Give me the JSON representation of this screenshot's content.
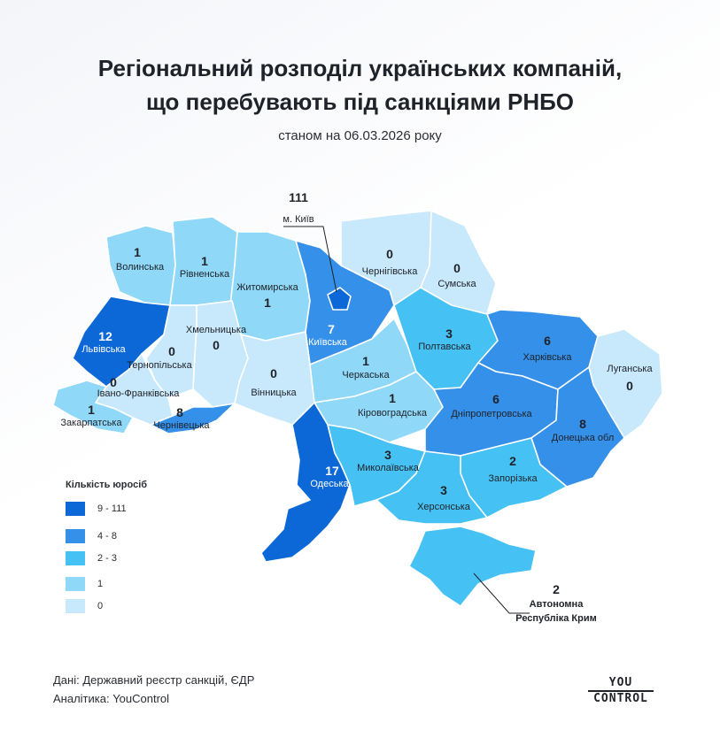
{
  "title_line1": "Регіональний розподіл українських компаній,",
  "title_line2": "що перебувають під санкціями РНБО",
  "subtitle": "станом на 06.03.2026 року",
  "colors": {
    "c0": "#c8e8fb",
    "c1": "#8fd8f8",
    "c2": "#45c1f4",
    "c3": "#3590e9",
    "c4": "#0b68d6"
  },
  "legend": {
    "title": "Кількість юросіб",
    "items": [
      {
        "label": "9 - 111",
        "color": "#0b68d6"
      },
      {
        "label": "4 - 8",
        "color": "#3590e9"
      },
      {
        "label": "2 - 3",
        "color": "#45c1f4"
      },
      {
        "label": "1",
        "color": "#8fd8f8"
      },
      {
        "label": "0",
        "color": "#c8e8fb"
      }
    ]
  },
  "regions": {
    "volynska": {
      "name": "Волинська",
      "value": "1"
    },
    "rivnenska": {
      "name": "Рівненська",
      "value": "1"
    },
    "zhytomyrska": {
      "name": "Житомирська",
      "value": "1"
    },
    "kyivska": {
      "name": "Київська",
      "value": "7"
    },
    "kyiv_city": {
      "name": "м. Київ",
      "value": "111"
    },
    "chernihivska": {
      "name": "Чернігівська",
      "value": "0"
    },
    "sumska": {
      "name": "Сумська",
      "value": "0"
    },
    "lvivska": {
      "name": "Львівська",
      "value": "12"
    },
    "khmelnytska": {
      "name": "Хмельницька",
      "value": "0"
    },
    "ternopilska": {
      "name": "Тернопільська",
      "value": "0"
    },
    "vinnytska": {
      "name": "Вінницька",
      "value": "0"
    },
    "cherkaska": {
      "name": "Черкаська",
      "value": "1"
    },
    "poltavska": {
      "name": "Полтавська",
      "value": "3"
    },
    "kharkivska": {
      "name": "Харківська",
      "value": "6"
    },
    "luhanska": {
      "name": "Луганська",
      "value": "0"
    },
    "ivanofrankivska": {
      "name": "Івано-Франківська",
      "value": "0"
    },
    "zakarpatska": {
      "name": "Закарпатська",
      "value": "1"
    },
    "chernivetska": {
      "name": "Чернівецька",
      "value": "8"
    },
    "kirovohradska": {
      "name": "Кіровоградська",
      "value": "1"
    },
    "dnipropetrovska": {
      "name": "Дніпропетровська",
      "value": "6"
    },
    "donetska": {
      "name": "Донецька обл",
      "value": "8"
    },
    "odeska": {
      "name": "Одеська",
      "value": "17"
    },
    "mykolaivska": {
      "name": "Миколаївська",
      "value": "3"
    },
    "zaporizka": {
      "name": "Запорізька",
      "value": "2"
    },
    "khersonska": {
      "name": "Херсонська",
      "value": "3"
    },
    "krym": {
      "name_line1": "Автономна",
      "name_line2": "Республіка Крим",
      "value": "2"
    }
  },
  "source_line1": "Дані: Державний реєстр санкцій, ЄДР",
  "source_line2": "Аналітика: YouControl",
  "logo": {
    "top": "YOU",
    "bottom": "CONTROL"
  }
}
